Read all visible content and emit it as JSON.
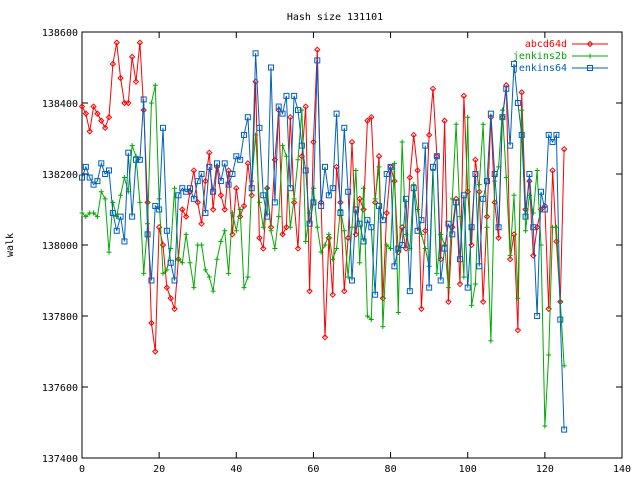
{
  "chart_data": {
    "type": "line",
    "title": "Hash size 131101",
    "xlabel": "",
    "ylabel": "walk",
    "xlim": [
      0,
      140
    ],
    "ylim": [
      137400,
      138600
    ],
    "xticks": [
      0,
      20,
      40,
      60,
      80,
      100,
      120,
      140
    ],
    "yticks": [
      137400,
      137600,
      137800,
      138000,
      138200,
      138400,
      138600
    ],
    "grid": false,
    "legend_position": "top-right",
    "series": [
      {
        "name": "abcd64d",
        "color": "#ff0000",
        "marker": "diamond",
        "x": [
          0,
          1,
          2,
          3,
          4,
          5,
          6,
          7,
          8,
          9,
          10,
          11,
          12,
          13,
          14,
          15,
          16,
          17,
          18,
          19,
          20,
          21,
          22,
          23,
          24,
          25,
          26,
          27,
          28,
          29,
          30,
          31,
          32,
          33,
          34,
          35,
          36,
          37,
          38,
          39,
          40,
          41,
          42,
          43,
          44,
          45,
          46,
          47,
          48,
          49,
          50,
          51,
          52,
          53,
          54,
          55,
          56,
          57,
          58,
          59,
          60,
          61,
          62,
          63,
          64,
          65,
          66,
          67,
          68,
          69,
          70,
          71,
          72,
          73,
          74,
          75,
          76,
          77,
          78,
          79,
          80,
          81,
          82,
          83,
          84,
          85,
          86,
          87,
          88,
          89,
          90,
          91,
          92,
          93,
          94,
          95,
          96,
          97,
          98,
          99,
          100,
          101,
          102,
          103,
          104,
          105,
          106,
          107,
          108,
          109,
          110,
          111,
          112,
          113,
          114,
          115,
          116,
          117,
          118,
          119,
          120,
          121,
          122,
          123,
          124,
          125
        ],
        "values": [
          138390,
          138370,
          138320,
          138390,
          138370,
          138350,
          138330,
          138360,
          138510,
          138570,
          138470,
          138400,
          138400,
          138530,
          138460,
          138570,
          138380,
          138120,
          137780,
          137700,
          138050,
          138000,
          137880,
          137850,
          137820,
          137960,
          138100,
          138080,
          138150,
          138210,
          138120,
          138060,
          138180,
          138260,
          138100,
          138220,
          138140,
          138100,
          138210,
          138030,
          138160,
          138080,
          138110,
          138230,
          138140,
          138460,
          138020,
          137990,
          138160,
          138050,
          138240,
          138380,
          138030,
          138050,
          138360,
          138120,
          137990,
          138250,
          138390,
          137870,
          138290,
          138550,
          138120,
          137740,
          138020,
          137860,
          138220,
          138120,
          137870,
          138020,
          138290,
          138030,
          138130,
          138100,
          138350,
          138360,
          138120,
          138250,
          137850,
          138090,
          138220,
          138180,
          137980,
          138050,
          137990,
          138190,
          138310,
          138210,
          137820,
          138040,
          138310,
          138440,
          138250,
          137960,
          138350,
          137840,
          138050,
          138130,
          137890,
          138420,
          138150,
          138000,
          138240,
          138150,
          137840,
          138080,
          138360,
          138120,
          138020,
          138360,
          138450,
          137960,
          138030,
          137760,
          138430,
          138100,
          138180,
          137970,
          138050,
          138100,
          138110,
          137820,
          138210,
          138010,
          137840,
          138270
        ]
      },
      {
        "name": "jenkins2b",
        "color": "#00aa00",
        "marker": "plus",
        "x": [
          0,
          1,
          2,
          3,
          4,
          5,
          6,
          7,
          8,
          9,
          10,
          11,
          12,
          13,
          14,
          15,
          16,
          17,
          18,
          19,
          20,
          21,
          22,
          23,
          24,
          25,
          26,
          27,
          28,
          29,
          30,
          31,
          32,
          33,
          34,
          35,
          36,
          37,
          38,
          39,
          40,
          41,
          42,
          43,
          44,
          45,
          46,
          47,
          48,
          49,
          50,
          51,
          52,
          53,
          54,
          55,
          56,
          57,
          58,
          59,
          60,
          61,
          62,
          63,
          64,
          65,
          66,
          67,
          68,
          69,
          70,
          71,
          72,
          73,
          74,
          75,
          76,
          77,
          78,
          79,
          80,
          81,
          82,
          83,
          84,
          85,
          86,
          87,
          88,
          89,
          90,
          91,
          92,
          93,
          94,
          95,
          96,
          97,
          98,
          99,
          100,
          101,
          102,
          103,
          104,
          105,
          106,
          107,
          108,
          109,
          110,
          111,
          112,
          113,
          114,
          115,
          116,
          117,
          118,
          119,
          120,
          121,
          122,
          123,
          124,
          125
        ],
        "values": [
          138090,
          138080,
          138090,
          138090,
          138080,
          138150,
          138130,
          137980,
          138120,
          138080,
          138140,
          138190,
          138150,
          138280,
          138250,
          138120,
          137920,
          138060,
          138400,
          138450,
          138130,
          137920,
          137930,
          137990,
          138160,
          137960,
          137950,
          138030,
          137950,
          137880,
          138000,
          138000,
          137930,
          137910,
          137870,
          137960,
          138010,
          138040,
          137920,
          138090,
          138040,
          138100,
          137880,
          137910,
          138180,
          138310,
          138120,
          138050,
          138160,
          138040,
          137990,
          138080,
          138280,
          138250,
          138050,
          138130,
          138240,
          138380,
          138010,
          138090,
          138160,
          138050,
          137980,
          138000,
          138030,
          137960,
          137990,
          138100,
          138040,
          137910,
          138050,
          138210,
          137950,
          138160,
          137800,
          137790,
          138130,
          138220,
          137770,
          138000,
          137990,
          138230,
          137810,
          138290,
          138030,
          137990,
          138170,
          138100,
          138030,
          137990,
          137940,
          138210,
          137920,
          138030,
          138000,
          137880,
          138130,
          138340,
          138080,
          137910,
          138360,
          137830,
          137890,
          138170,
          138340,
          138050,
          137730,
          138180,
          138220,
          138380,
          138190,
          137970,
          138140,
          137850,
          138380,
          138040,
          138140,
          138090,
          138210,
          138000,
          137490,
          137690,
          138050,
          138050,
          137840,
          137660
        ]
      },
      {
        "name": "jenkins64",
        "color": "#0060c0",
        "marker": "square",
        "x": [
          0,
          1,
          2,
          3,
          4,
          5,
          6,
          7,
          8,
          9,
          10,
          11,
          12,
          13,
          14,
          15,
          16,
          17,
          18,
          19,
          20,
          21,
          22,
          23,
          24,
          25,
          26,
          27,
          28,
          29,
          30,
          31,
          32,
          33,
          34,
          35,
          36,
          37,
          38,
          39,
          40,
          41,
          42,
          43,
          44,
          45,
          46,
          47,
          48,
          49,
          50,
          51,
          52,
          53,
          54,
          55,
          56,
          57,
          58,
          59,
          60,
          61,
          62,
          63,
          64,
          65,
          66,
          67,
          68,
          69,
          70,
          71,
          72,
          73,
          74,
          75,
          76,
          77,
          78,
          79,
          80,
          81,
          82,
          83,
          84,
          85,
          86,
          87,
          88,
          89,
          90,
          91,
          92,
          93,
          94,
          95,
          96,
          97,
          98,
          99,
          100,
          101,
          102,
          103,
          104,
          105,
          106,
          107,
          108,
          109,
          110,
          111,
          112,
          113,
          114,
          115,
          116,
          117,
          118,
          119,
          120,
          121,
          122,
          123,
          124,
          125
        ],
        "values": [
          138190,
          138220,
          138190,
          138170,
          138180,
          138230,
          138200,
          138210,
          138090,
          138040,
          138080,
          138010,
          138260,
          138080,
          138240,
          138240,
          138410,
          138030,
          137900,
          138110,
          138100,
          138330,
          138040,
          137950,
          137900,
          138140,
          138160,
          138150,
          138160,
          138130,
          138180,
          138200,
          138090,
          138220,
          138150,
          138230,
          138180,
          138230,
          138170,
          138200,
          138250,
          138240,
          138310,
          138360,
          138160,
          138540,
          138330,
          138140,
          138080,
          138500,
          138120,
          138390,
          138370,
          138420,
          138160,
          138420,
          138380,
          138280,
          138210,
          138060,
          138120,
          138520,
          138110,
          138220,
          138140,
          138160,
          138370,
          138090,
          138330,
          138150,
          137900,
          138100,
          138060,
          138010,
          138070,
          138050,
          137860,
          138110,
          138070,
          138200,
          138220,
          137940,
          137990,
          138000,
          138130,
          137870,
          138160,
          138040,
          138070,
          138280,
          137880,
          138220,
          138250,
          137900,
          137990,
          138060,
          138030,
          138120,
          137960,
          138140,
          137880,
          138050,
          138200,
          137940,
          138130,
          138180,
          138370,
          138200,
          138050,
          138360,
          138440,
          138280,
          138510,
          138400,
          138310,
          138080,
          138200,
          138050,
          137800,
          138150,
          138100,
          138310,
          138290,
          138310,
          137790,
          137480
        ]
      }
    ]
  }
}
